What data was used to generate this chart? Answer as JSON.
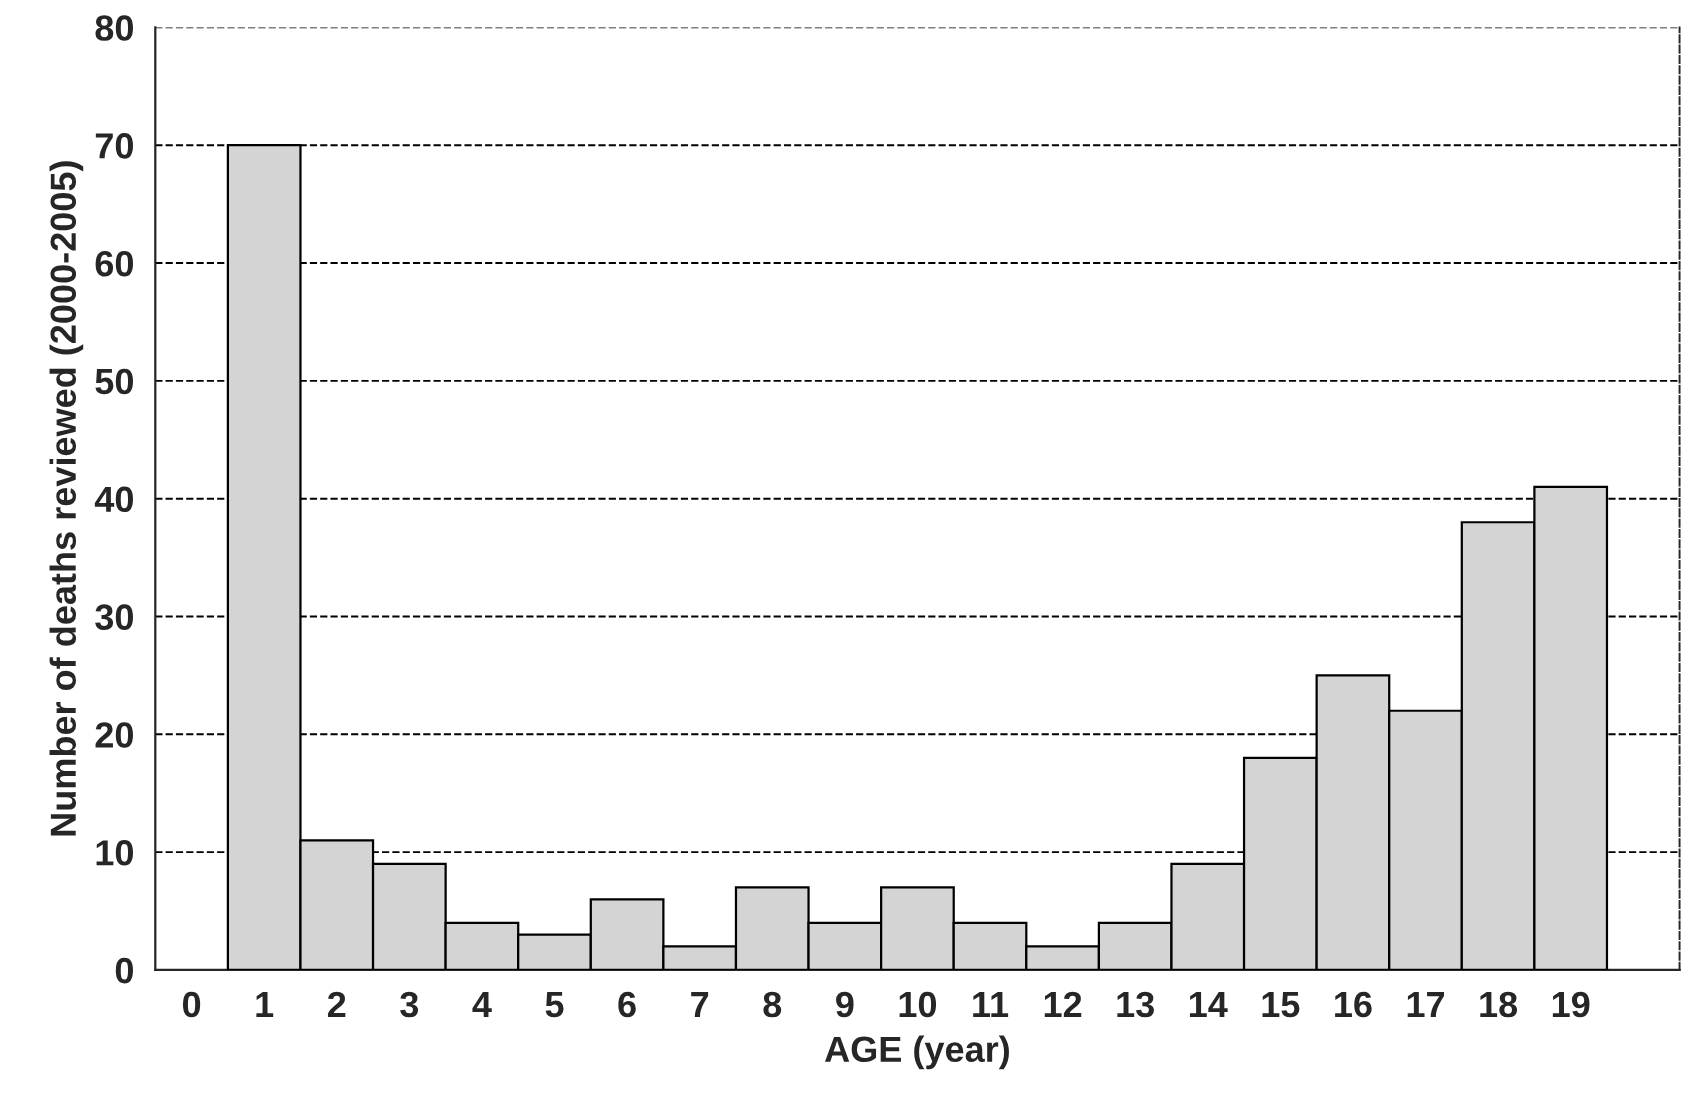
{
  "chart_data": {
    "type": "bar",
    "xlabel": "AGE (year)",
    "ylabel": "Number of deaths reviewed (2000-2005)",
    "categories": [
      "0",
      "1",
      "2",
      "3",
      "4",
      "5",
      "6",
      "7",
      "8",
      "9",
      "10",
      "11",
      "12",
      "13",
      "14",
      "15",
      "16",
      "17",
      "18",
      "19"
    ],
    "values": [
      null,
      70,
      11,
      9,
      4,
      3,
      6,
      2,
      7,
      4,
      7,
      4,
      2,
      4,
      9,
      18,
      25,
      22,
      38,
      41
    ],
    "color": "#d4d4d4",
    "ylim": [
      0,
      80
    ],
    "yticks": [
      0,
      10,
      20,
      30,
      40,
      50,
      60,
      70,
      80
    ],
    "grid": "y",
    "line_style": "dashed"
  }
}
